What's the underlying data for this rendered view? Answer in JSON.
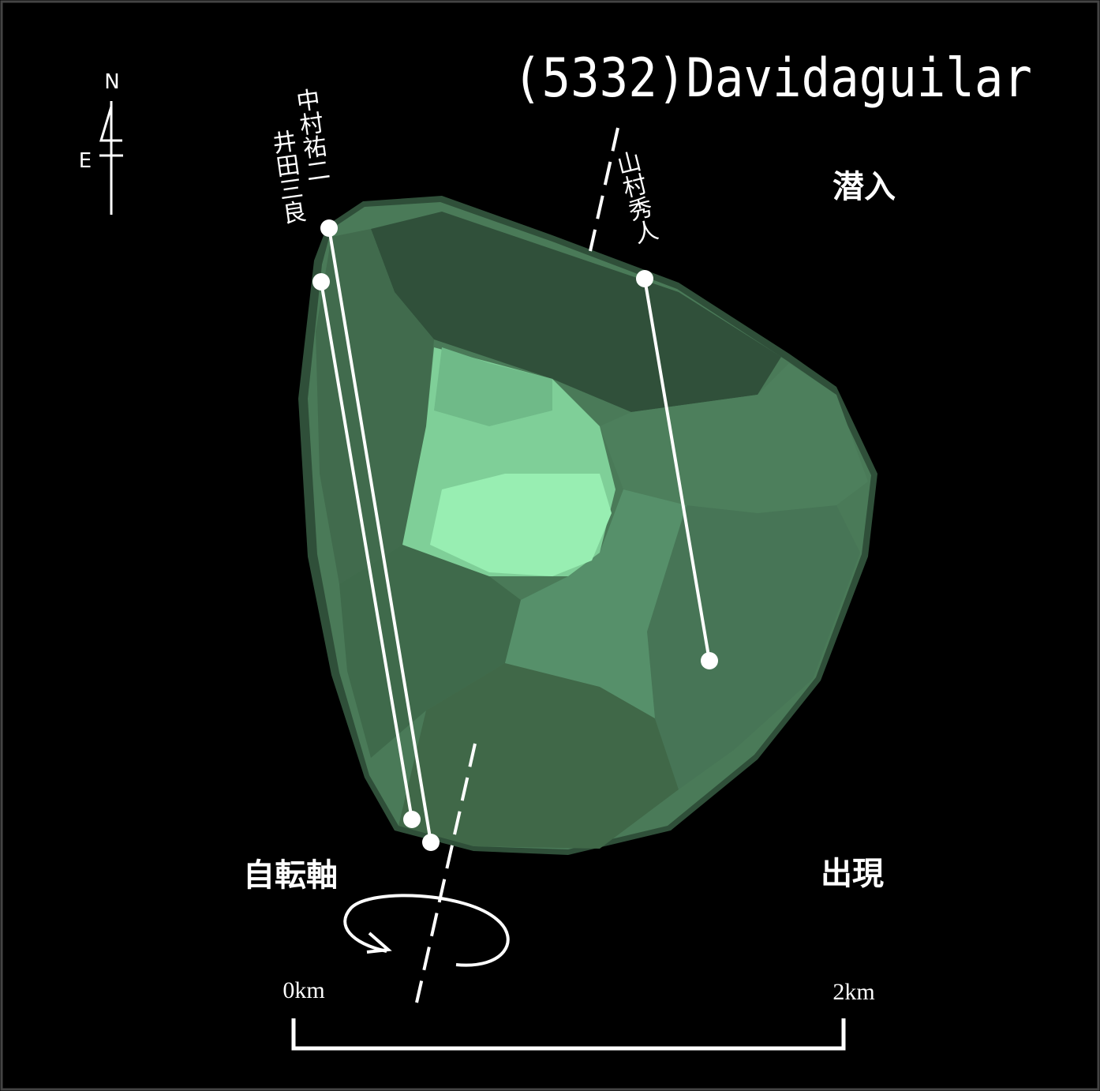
{
  "title": "(5332)Davidaguilar",
  "compass": {
    "north": "N",
    "east": "E"
  },
  "observers": [
    "中村祐二",
    "井田三良",
    "山村秀人"
  ],
  "labels": {
    "disappearance": "潜入",
    "reappearance": "出現",
    "rotation_axis": "自転軸"
  },
  "scale": {
    "start": "0km",
    "end": "2km"
  }
}
